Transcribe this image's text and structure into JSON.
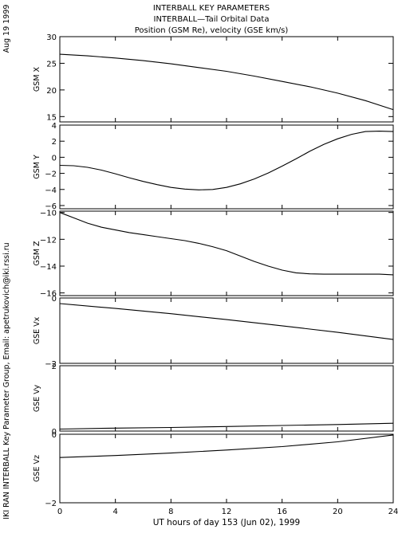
{
  "side_text": {
    "date": "Aug 19 1999",
    "credit": "IKI RAN INTERBALL Key Parameter Group, Email: apetrukovich@iki.rssi.ru"
  },
  "header": {
    "line1": "INTERBALL KEY PARAMETERS",
    "line2": "INTERBALL—Tail Orbital Data",
    "line3": "Position (GSM Re), velocity (GSE km/s)"
  },
  "chart_data": {
    "type": "line",
    "x_axis": {
      "label": "UT hours of day 153 (Jun 02), 1999",
      "range": [
        0,
        24
      ],
      "ticks": [
        0,
        4,
        8,
        12,
        16,
        20,
        24
      ],
      "tick_labels": [
        "0",
        "4",
        "8",
        "12",
        "16",
        "20",
        "24"
      ]
    },
    "panels": [
      {
        "ylabel": "GSM X",
        "ylim": [
          14,
          30
        ],
        "yticks": [
          15,
          20,
          25,
          30
        ],
        "ytick_labels": [
          "15",
          "20",
          "25",
          "30"
        ],
        "x": [
          0,
          2,
          4,
          6,
          8,
          10,
          12,
          14,
          16,
          18,
          20,
          22,
          24
        ],
        "y": [
          26.7,
          26.4,
          26.0,
          25.5,
          24.9,
          24.2,
          23.5,
          22.6,
          21.6,
          20.6,
          19.4,
          18.0,
          16.3
        ]
      },
      {
        "ylabel": "GSM Y",
        "ylim": [
          -6.4,
          4.0
        ],
        "yticks": [
          -6,
          -4,
          -2,
          0,
          2,
          4
        ],
        "ytick_labels": [
          "−6",
          "−4",
          "−2",
          "0",
          "2",
          "4"
        ],
        "x": [
          0,
          1,
          2,
          3,
          4,
          5,
          6,
          7,
          8,
          9,
          10,
          11,
          12,
          13,
          14,
          15,
          16,
          17,
          18,
          19,
          20,
          21,
          22,
          23,
          24
        ],
        "y": [
          -1.0,
          -1.05,
          -1.25,
          -1.6,
          -2.05,
          -2.55,
          -3.0,
          -3.4,
          -3.75,
          -3.95,
          -4.05,
          -4.0,
          -3.75,
          -3.3,
          -2.7,
          -1.95,
          -1.1,
          -0.2,
          0.75,
          1.6,
          2.3,
          2.85,
          3.2,
          3.25,
          3.2
        ]
      },
      {
        "ylabel": "GSM Z",
        "ylim": [
          -16.2,
          -9.9
        ],
        "yticks": [
          -16,
          -14,
          -12,
          -10
        ],
        "ytick_labels": [
          "−16",
          "−14",
          "−12",
          "−10"
        ],
        "x": [
          0,
          1,
          2,
          3,
          4,
          5,
          6,
          7,
          8,
          9,
          10,
          11,
          12,
          13,
          14,
          15,
          16,
          17,
          18,
          19,
          20,
          21,
          22,
          23,
          24
        ],
        "y": [
          -10.0,
          -10.4,
          -10.8,
          -11.1,
          -11.3,
          -11.5,
          -11.65,
          -11.8,
          -11.95,
          -12.1,
          -12.3,
          -12.55,
          -12.85,
          -13.25,
          -13.65,
          -14.0,
          -14.3,
          -14.5,
          -14.58,
          -14.6,
          -14.6,
          -14.6,
          -14.6,
          -14.6,
          -14.65
        ]
      },
      {
        "ylabel": "GSE Vx",
        "ylim": [
          -2,
          0
        ],
        "yticks": [
          -2,
          0
        ],
        "ytick_labels": [
          "−2",
          "0"
        ],
        "x": [
          0,
          4,
          8,
          12,
          16,
          20,
          24
        ],
        "y": [
          -0.17,
          -0.32,
          -0.48,
          -0.66,
          -0.85,
          -1.05,
          -1.27
        ]
      },
      {
        "ylabel": "GSE Vy",
        "ylim": [
          0,
          2
        ],
        "yticks": [
          0,
          2
        ],
        "ytick_labels": [
          "0",
          "2"
        ],
        "x": [
          0,
          4,
          8,
          12,
          16,
          20,
          24
        ],
        "y": [
          0.06,
          0.09,
          0.11,
          0.14,
          0.17,
          0.2,
          0.24
        ]
      },
      {
        "ylabel": "GSE Vz",
        "ylim": [
          -2,
          0
        ],
        "yticks": [
          -2,
          0
        ],
        "ytick_labels": [
          "−2",
          "0"
        ],
        "x": [
          0,
          4,
          8,
          12,
          16,
          20,
          24
        ],
        "y": [
          -0.68,
          -0.62,
          -0.55,
          -0.46,
          -0.36,
          -0.22,
          -0.02
        ]
      }
    ]
  }
}
